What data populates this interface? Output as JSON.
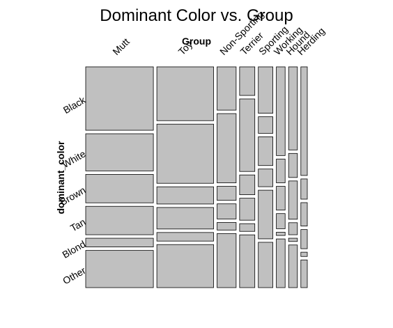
{
  "chart_data": {
    "type": "mosaic",
    "title": "Dominant Color vs. Group",
    "xlabel": "Group",
    "ylabel": "dominant_color",
    "groups": [
      "Mutt",
      "Toy",
      "Non-Sporting",
      "Terrier",
      "Sporting",
      "Working",
      "Hound",
      "Herding"
    ],
    "colors": [
      "Black",
      "White",
      "Brown",
      "Tan",
      "Blond",
      "Other"
    ],
    "group_share": [
      0.316,
      0.265,
      0.089,
      0.071,
      0.068,
      0.041,
      0.041,
      0.03
    ],
    "cell_share": {
      "Mutt": [
        0.29,
        0.17,
        0.13,
        0.13,
        0.04,
        0.17
      ],
      "Toy": [
        0.25,
        0.275,
        0.08,
        0.1,
        0.04,
        0.2
      ],
      "Non-Sporting": [
        0.2,
        0.32,
        0.065,
        0.07,
        0.035,
        0.25
      ],
      "Terrier": [
        0.13,
        0.33,
        0.09,
        0.1,
        0.035,
        0.24
      ],
      "Sporting": [
        0.21,
        0.075,
        0.13,
        0.08,
        0.22,
        0.205
      ],
      "Working": [
        0.41,
        0.11,
        0.11,
        0.07,
        0.015,
        0.225
      ],
      "Hound": [
        0.38,
        0.11,
        0.175,
        0.055,
        0.015,
        0.195
      ],
      "Herding": [
        0.51,
        0.095,
        0.11,
        0.09,
        0.02,
        0.13
      ]
    },
    "fill_color": "#c0c0c0",
    "stroke_color": "#000000"
  }
}
